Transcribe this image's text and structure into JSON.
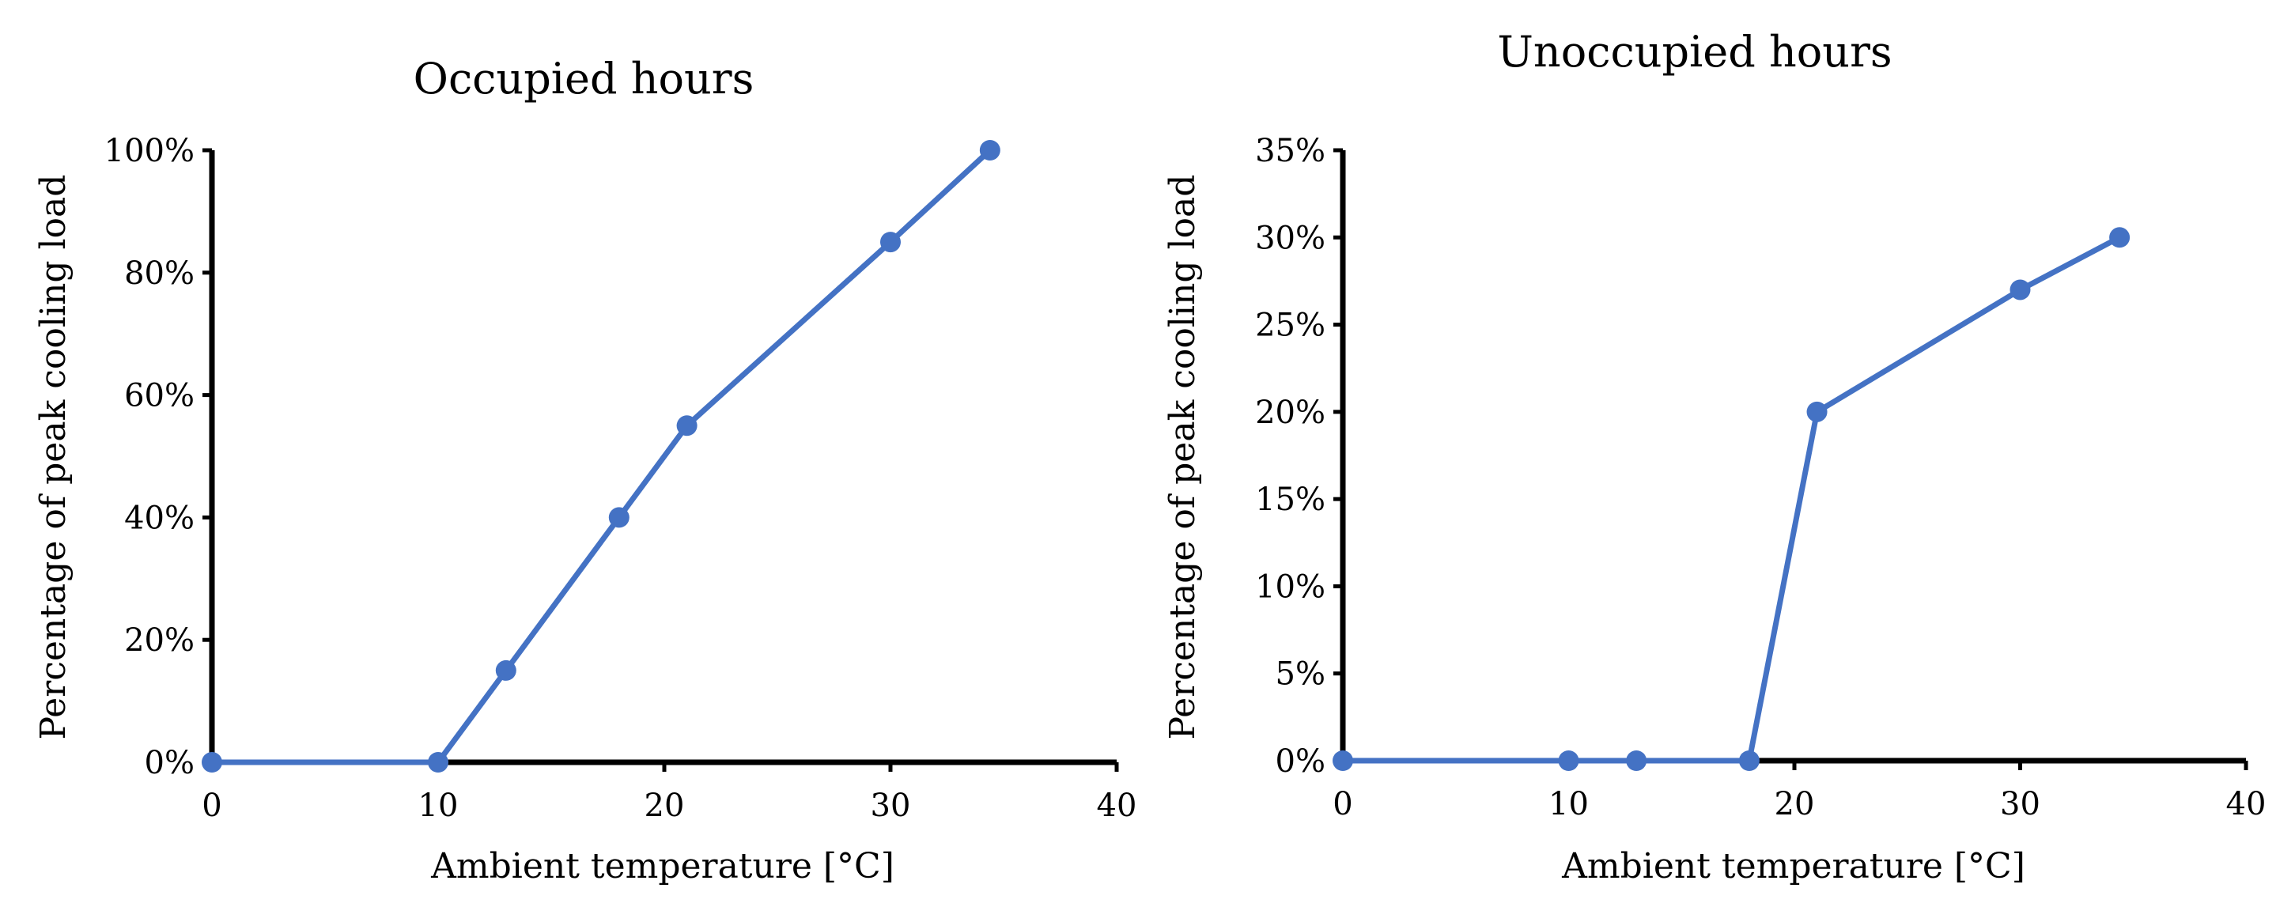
{
  "colors": {
    "series": "#4472C4",
    "axis": "#000000"
  },
  "chart_data": [
    {
      "type": "line",
      "title": "Occupied hours",
      "xlabel": "Ambient temperature [°C]",
      "ylabel": "Percentage of peak cooling load",
      "xlim": [
        0,
        40
      ],
      "ylim": [
        0,
        100
      ],
      "xticks": [
        0,
        10,
        20,
        30,
        40
      ],
      "xtick_labels": [
        "0",
        "10",
        "20",
        "30",
        "40"
      ],
      "yticks": [
        0,
        20,
        40,
        60,
        80,
        100
      ],
      "ytick_labels": [
        "0%",
        "20%",
        "40%",
        "60%",
        "80%",
        "100%"
      ],
      "grid": false,
      "legend": "none",
      "series": [
        {
          "x": [
            0,
            10,
            13,
            18,
            21,
            30,
            34.4
          ],
          "y": [
            0,
            0,
            15,
            40,
            55,
            85,
            100
          ]
        }
      ]
    },
    {
      "type": "line",
      "title": "Unoccupied hours",
      "xlabel": "Ambient temperature [°C]",
      "ylabel": "Percentage of peak cooling load",
      "xlim": [
        0,
        40
      ],
      "ylim": [
        0,
        35
      ],
      "xticks": [
        0,
        10,
        20,
        30,
        40
      ],
      "xtick_labels": [
        "0",
        "10",
        "20",
        "30",
        "40"
      ],
      "yticks": [
        0,
        5,
        10,
        15,
        20,
        25,
        30,
        35
      ],
      "ytick_labels": [
        "0%",
        "5%",
        "10%",
        "15%",
        "20%",
        "25%",
        "30%",
        "35%"
      ],
      "grid": false,
      "legend": "none",
      "series": [
        {
          "x": [
            0,
            10,
            13,
            18,
            21,
            30,
            34.4
          ],
          "y": [
            0,
            0,
            0,
            0,
            20,
            27,
            30
          ]
        }
      ]
    }
  ]
}
